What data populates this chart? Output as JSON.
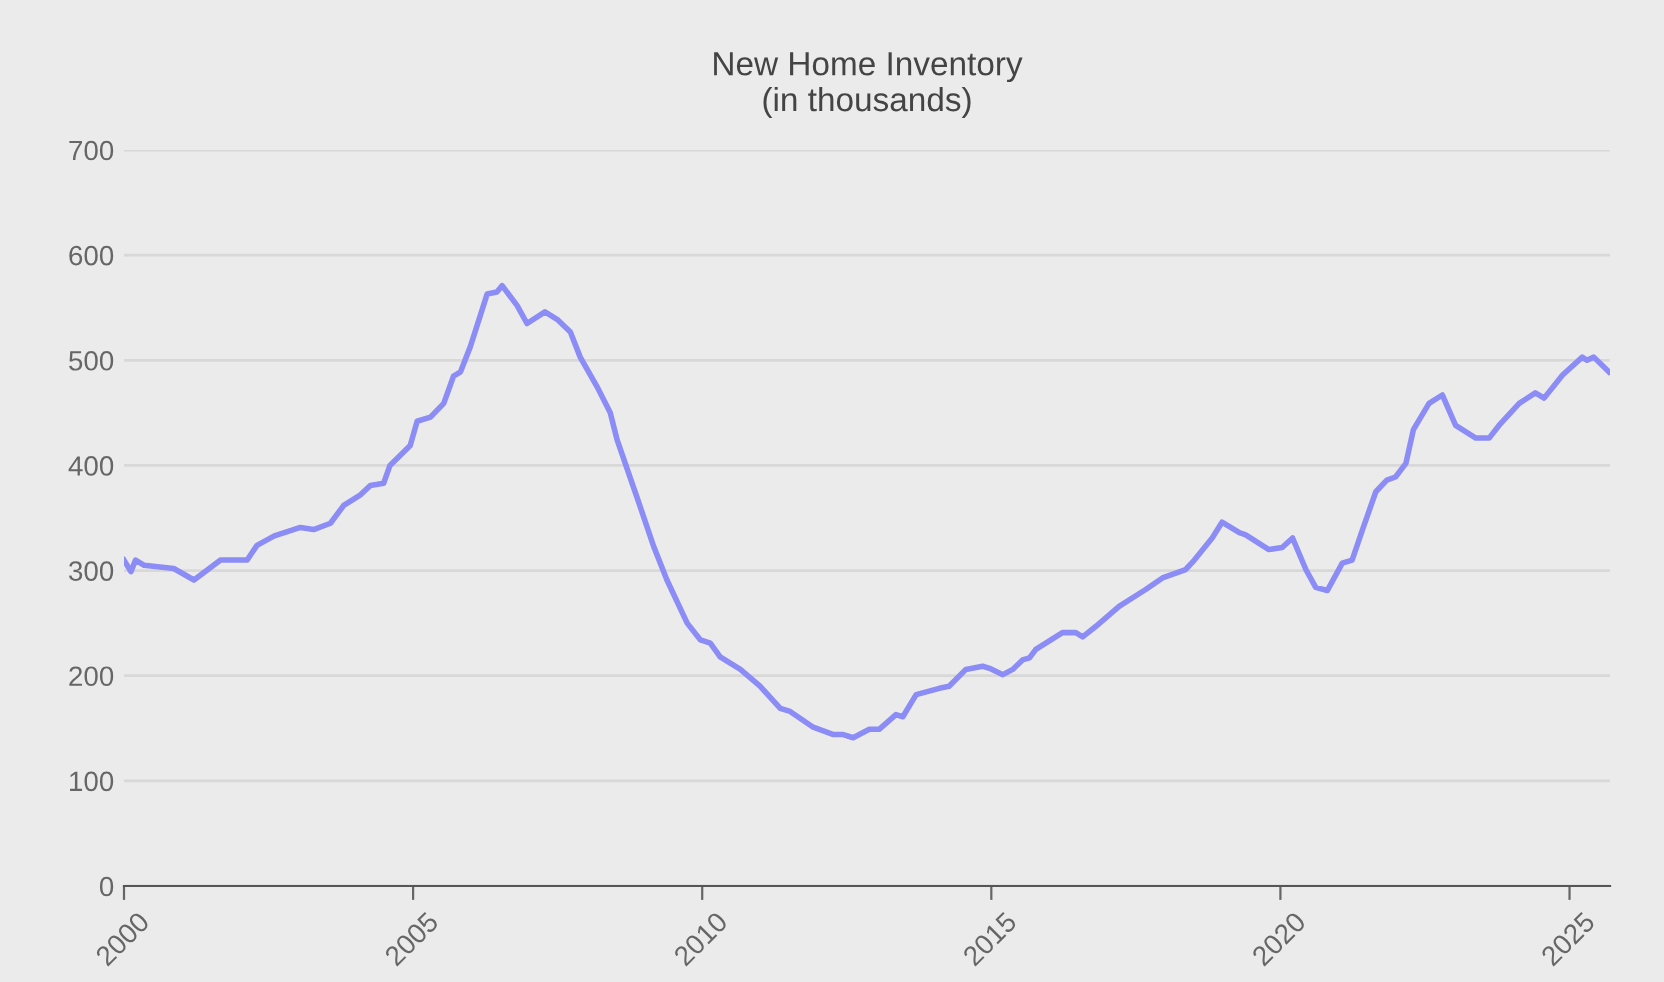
{
  "chart_data": {
    "type": "line",
    "title": "New Home Inventory\n(in thousands)",
    "xlim": [
      2000,
      2025.7
    ],
    "xticks": [
      2000,
      2005,
      2010,
      2015,
      2020,
      2025
    ],
    "ylim": [
      0,
      700
    ],
    "yticks": [
      0,
      100,
      200,
      300,
      400,
      500,
      600,
      700
    ],
    "grid": "y",
    "legend": false,
    "marker": "none",
    "line_style": "solid",
    "series": [
      {
        "color": "#8c8cf7",
        "x": [
          2000.0,
          2000.12,
          2000.2,
          2000.35,
          2000.86,
          2001.21,
          2001.67,
          2002.13,
          2002.3,
          2002.6,
          2003.05,
          2003.28,
          2003.57,
          2003.8,
          2004.09,
          2004.26,
          2004.49,
          2004.6,
          2004.95,
          2005.07,
          2005.3,
          2005.53,
          2005.7,
          2005.82,
          2005.99,
          2006.28,
          2006.45,
          2006.54,
          2006.8,
          2006.97,
          2007.28,
          2007.49,
          2007.72,
          2007.89,
          2008.18,
          2008.41,
          2008.53,
          2008.87,
          2009.16,
          2009.39,
          2009.74,
          2009.97,
          2010.14,
          2010.31,
          2010.66,
          2011.0,
          2011.35,
          2011.52,
          2011.92,
          2012.27,
          2012.44,
          2012.61,
          2012.89,
          2013.06,
          2013.35,
          2013.47,
          2013.7,
          2014.1,
          2014.27,
          2014.56,
          2014.85,
          2014.97,
          2015.2,
          2015.37,
          2015.54,
          2015.66,
          2015.77,
          2016.23,
          2016.46,
          2016.58,
          2016.81,
          2017.21,
          2017.67,
          2017.96,
          2018.36,
          2018.48,
          2018.82,
          2018.99,
          2019.29,
          2019.4,
          2019.8,
          2020.03,
          2020.21,
          2020.44,
          2020.61,
          2020.81,
          2021.07,
          2021.24,
          2021.42,
          2021.65,
          2021.84,
          2021.99,
          2022.17,
          2022.3,
          2022.57,
          2022.8,
          2023.03,
          2023.38,
          2023.61,
          2023.78,
          2024.13,
          2024.41,
          2024.56,
          2024.88,
          2025.22,
          2025.3,
          2025.42,
          2025.68
        ],
        "values": [
          310,
          299,
          310,
          305,
          302,
          291,
          310,
          310,
          324,
          333,
          341,
          339,
          345,
          362,
          372,
          381,
          383,
          400,
          419,
          442,
          446,
          459,
          485,
          489,
          513,
          563,
          565,
          571,
          552,
          535,
          546,
          539,
          527,
          503,
          475,
          450,
          424,
          370,
          323,
          291,
          250,
          234,
          231,
          218,
          206,
          190,
          169,
          166,
          151,
          144,
          144,
          141,
          149,
          149,
          163,
          161,
          182,
          188,
          190,
          206,
          209,
          207,
          201,
          206,
          215,
          217,
          225,
          241,
          241,
          237,
          247,
          266,
          282,
          293,
          301,
          308,
          331,
          346,
          336,
          334,
          320,
          322,
          331,
          301,
          284,
          281,
          307,
          310,
          339,
          375,
          386,
          389,
          402,
          434,
          459,
          467,
          438,
          426,
          426,
          438,
          459,
          469,
          464,
          486,
          503,
          500,
          503,
          489
        ]
      }
    ]
  }
}
